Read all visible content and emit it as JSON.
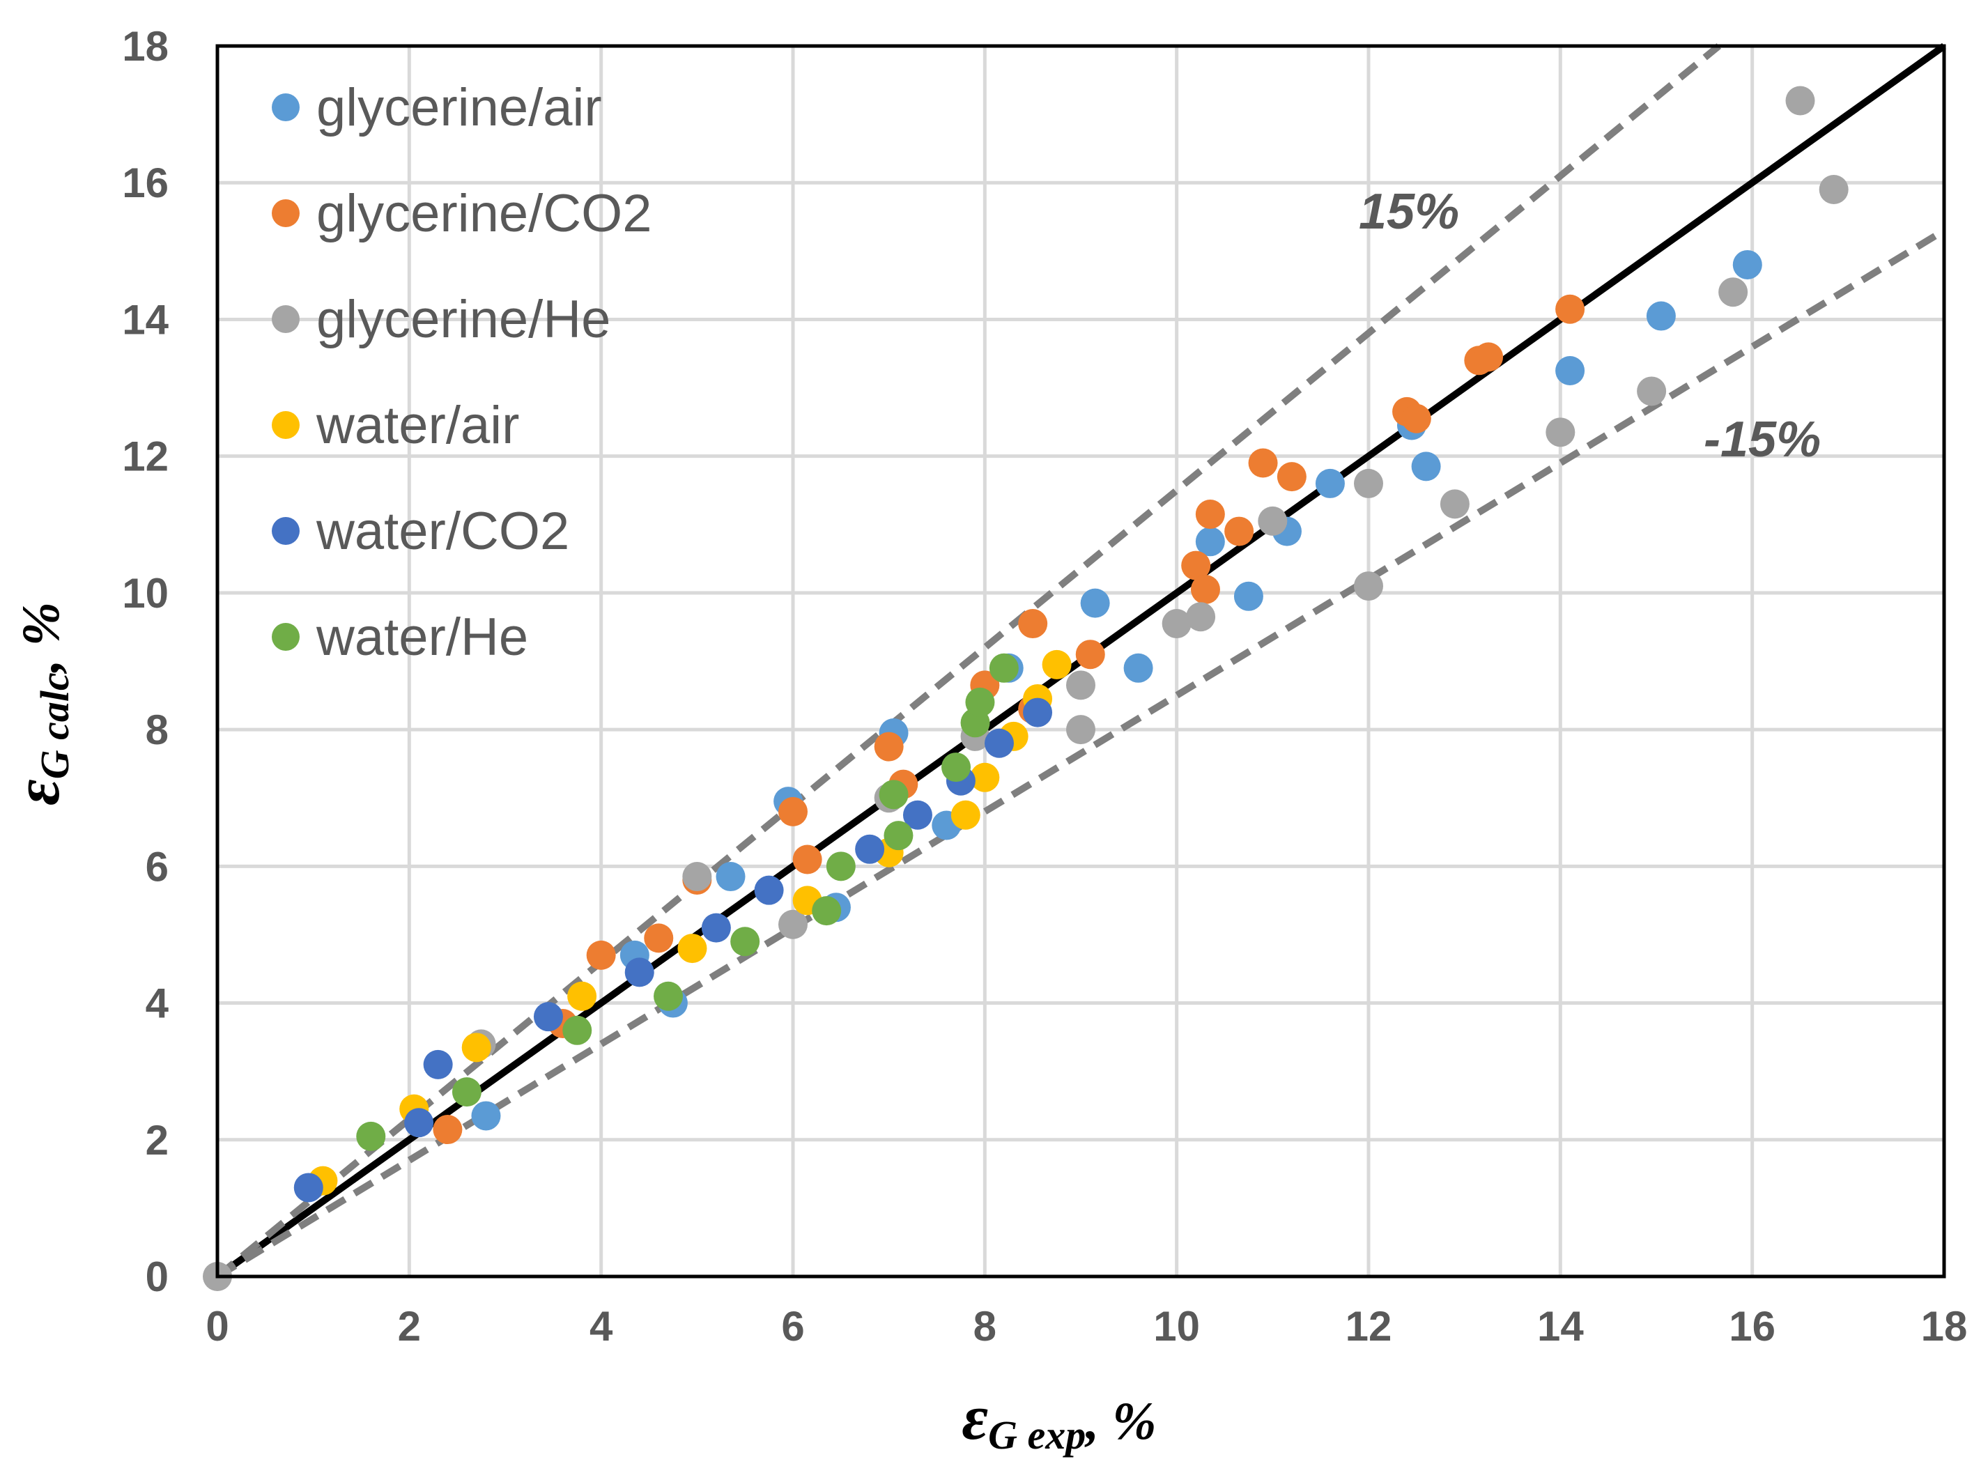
{
  "chart_data": {
    "type": "scatter",
    "xlabel": {
      "symbol": "ε",
      "subscript": "G exp",
      "suffix": ", %"
    },
    "ylabel": {
      "symbol": "ε",
      "subscript": "G calc",
      "suffix": ", %"
    },
    "xlim": [
      0,
      18
    ],
    "ylim": [
      0,
      18
    ],
    "xticks": [
      "0",
      "2",
      "4",
      "6",
      "8",
      "10",
      "12",
      "14",
      "16",
      "18"
    ],
    "yticks": [
      "0",
      "2",
      "4",
      "6",
      "8",
      "10",
      "12",
      "14",
      "16",
      "18"
    ],
    "grid": true,
    "legend_position": "top-left",
    "reference_lines": [
      {
        "name": "parity",
        "label": "",
        "slope": 1.0,
        "style": "solid",
        "color": "#000000"
      },
      {
        "name": "plus-15",
        "label": "15%",
        "slope": 1.15,
        "style": "dashed",
        "color": "#7f7f7f"
      },
      {
        "name": "minus-15",
        "label": "-15%",
        "slope": 0.85,
        "style": "dashed",
        "color": "#7f7f7f"
      }
    ],
    "series": [
      {
        "name": "glycerine/air",
        "color": "#5b9bd5",
        "points": [
          [
            2.8,
            2.35
          ],
          [
            4.35,
            4.7
          ],
          [
            4.75,
            4.0
          ],
          [
            5.35,
            5.85
          ],
          [
            5.95,
            6.95
          ],
          [
            6.45,
            5.4
          ],
          [
            7.05,
            7.95
          ],
          [
            7.6,
            6.6
          ],
          [
            8.25,
            8.9
          ],
          [
            9.15,
            9.85
          ],
          [
            9.6,
            8.9
          ],
          [
            10.35,
            10.75
          ],
          [
            10.75,
            9.95
          ],
          [
            11.15,
            10.9
          ],
          [
            11.6,
            11.6
          ],
          [
            12.45,
            12.45
          ],
          [
            12.6,
            11.85
          ],
          [
            14.1,
            13.25
          ],
          [
            15.05,
            14.05
          ],
          [
            15.95,
            14.8
          ]
        ]
      },
      {
        "name": "glycerine/CO2",
        "color": "#ed7d31",
        "points": [
          [
            2.4,
            2.15
          ],
          [
            3.6,
            3.7
          ],
          [
            4.0,
            4.7
          ],
          [
            4.6,
            4.95
          ],
          [
            5.0,
            5.8
          ],
          [
            6.0,
            6.8
          ],
          [
            6.15,
            6.1
          ],
          [
            7.0,
            7.75
          ],
          [
            7.15,
            7.2
          ],
          [
            8.0,
            8.65
          ],
          [
            8.5,
            9.55
          ],
          [
            9.1,
            9.1
          ],
          [
            10.2,
            10.4
          ],
          [
            10.3,
            10.05
          ],
          [
            10.35,
            11.15
          ],
          [
            10.65,
            10.9
          ],
          [
            10.9,
            11.9
          ],
          [
            11.2,
            11.7
          ],
          [
            12.4,
            12.65
          ],
          [
            12.5,
            12.55
          ],
          [
            13.15,
            13.4
          ],
          [
            13.25,
            13.45
          ],
          [
            14.1,
            14.15
          ],
          [
            8.5,
            8.3
          ]
        ]
      },
      {
        "name": "glycerine/He",
        "color": "#a5a5a5",
        "points": [
          [
            0.0,
            0.0
          ],
          [
            2.75,
            3.4
          ],
          [
            5.0,
            5.85
          ],
          [
            6.0,
            5.15
          ],
          [
            7.0,
            7.0
          ],
          [
            7.9,
            7.9
          ],
          [
            9.0,
            8.65
          ],
          [
            9.0,
            8.0
          ],
          [
            10.0,
            9.55
          ],
          [
            10.25,
            9.65
          ],
          [
            11.0,
            11.05
          ],
          [
            12.0,
            11.6
          ],
          [
            12.0,
            10.1
          ],
          [
            12.9,
            11.3
          ],
          [
            14.0,
            12.35
          ],
          [
            14.95,
            12.95
          ],
          [
            15.8,
            14.4
          ],
          [
            16.5,
            17.2
          ],
          [
            16.85,
            15.9
          ]
        ]
      },
      {
        "name": "water/air",
        "color": "#ffc000",
        "points": [
          [
            1.1,
            1.4
          ],
          [
            2.05,
            2.45
          ],
          [
            2.7,
            3.35
          ],
          [
            3.8,
            4.1
          ],
          [
            4.95,
            4.8
          ],
          [
            6.15,
            5.5
          ],
          [
            7.0,
            6.2
          ],
          [
            7.8,
            6.75
          ],
          [
            8.0,
            7.3
          ],
          [
            8.3,
            7.9
          ],
          [
            8.55,
            8.45
          ],
          [
            8.75,
            8.95
          ]
        ]
      },
      {
        "name": "water/CO2",
        "color": "#4472c4",
        "points": [
          [
            0.95,
            1.3
          ],
          [
            2.1,
            2.25
          ],
          [
            2.3,
            3.1
          ],
          [
            3.45,
            3.8
          ],
          [
            4.4,
            4.45
          ],
          [
            5.2,
            5.1
          ],
          [
            5.75,
            5.65
          ],
          [
            6.8,
            6.25
          ],
          [
            7.3,
            6.75
          ],
          [
            7.75,
            7.25
          ],
          [
            8.15,
            7.8
          ],
          [
            8.55,
            8.25
          ]
        ]
      },
      {
        "name": "water/He",
        "color": "#70ad47",
        "points": [
          [
            1.6,
            2.05
          ],
          [
            2.6,
            2.7
          ],
          [
            3.75,
            3.6
          ],
          [
            4.7,
            4.1
          ],
          [
            5.5,
            4.9
          ],
          [
            6.35,
            5.35
          ],
          [
            6.5,
            6.0
          ],
          [
            7.05,
            7.05
          ],
          [
            7.1,
            6.45
          ],
          [
            7.7,
            7.45
          ],
          [
            7.9,
            8.1
          ],
          [
            7.95,
            8.4
          ],
          [
            8.2,
            8.9
          ]
        ]
      }
    ],
    "annotations": [
      {
        "text": "15%",
        "target_line": "plus-15"
      },
      {
        "text": "-15%",
        "target_line": "minus-15"
      }
    ]
  }
}
